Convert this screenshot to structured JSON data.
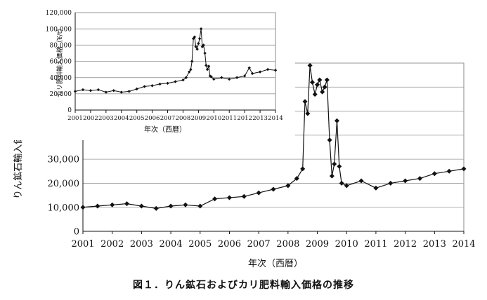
{
  "caption": "図１．りん鉱石およびカリ肥料輸入価格の推移",
  "chart_data": [
    {
      "type": "line",
      "name": "main",
      "ylabel": "りん鉱石輸入価格（¥/t）",
      "xlabel": "年次（西暦）",
      "xlim": [
        2001,
        2014
      ],
      "ylim": [
        0,
        70000
      ],
      "x_ticks": [
        2001,
        2002,
        2003,
        2004,
        2005,
        2006,
        2007,
        2008,
        2009,
        2010,
        2011,
        2012,
        2013,
        2014
      ],
      "y_ticks": [
        {
          "value": 0,
          "label": "0"
        },
        {
          "value": 10000,
          "label": "10,000"
        },
        {
          "value": 20000,
          "label": "20,000"
        },
        {
          "value": 30000,
          "label": "30,000"
        },
        {
          "value": 40000,
          "label": "40,000"
        }
      ],
      "grid": true,
      "marker": "diamond",
      "x": [
        2001.0,
        2001.5,
        2002.0,
        2002.5,
        2003.0,
        2003.5,
        2004.0,
        2004.5,
        2005.0,
        2005.5,
        2006.0,
        2006.5,
        2007.0,
        2007.5,
        2008.0,
        2008.3,
        2008.5,
        2008.58,
        2008.67,
        2008.75,
        2008.83,
        2008.92,
        2009.0,
        2009.08,
        2009.17,
        2009.25,
        2009.33,
        2009.42,
        2009.5,
        2009.58,
        2009.67,
        2009.75,
        2009.83,
        2010.0,
        2010.5,
        2011.0,
        2011.5,
        2012.0,
        2012.5,
        2013.0,
        2013.5,
        2014.0
      ],
      "y": [
        10000,
        10500,
        11000,
        11500,
        10500,
        9500,
        10500,
        11000,
        10500,
        13500,
        14000,
        14500,
        16000,
        17500,
        19000,
        22000,
        26000,
        54000,
        49000,
        69000,
        62000,
        57000,
        61000,
        63000,
        58000,
        60000,
        63000,
        38000,
        23000,
        28000,
        46000,
        27000,
        20000,
        19000,
        21000,
        18000,
        20000,
        21000,
        22000,
        24000,
        25000,
        26000
      ]
    },
    {
      "type": "line",
      "name": "inset",
      "ylabel": "カリ肥料輸入価格（¥/t）",
      "xlabel": "年次（西暦）",
      "xlim": [
        2001,
        2014
      ],
      "ylim": [
        0,
        120000
      ],
      "x_ticks": [
        2001,
        2002,
        2003,
        2004,
        2005,
        2006,
        2007,
        2008,
        2009,
        2010,
        2011,
        2012,
        2013,
        2014
      ],
      "y_ticks": [
        {
          "value": 0,
          "label": "0"
        },
        {
          "value": 20000,
          "label": "20,000"
        },
        {
          "value": 40000,
          "label": "40,000"
        },
        {
          "value": 60000,
          "label": "60,000"
        },
        {
          "value": 80000,
          "label": "80,000"
        },
        {
          "value": 100000,
          "label": "100,000"
        },
        {
          "value": 120000,
          "label": "120,000"
        }
      ],
      "grid": true,
      "marker": "diamond",
      "x": [
        2001.0,
        2001.5,
        2002.0,
        2002.5,
        2003.0,
        2003.5,
        2004.0,
        2004.5,
        2005.0,
        2005.5,
        2006.0,
        2006.5,
        2007.0,
        2007.5,
        2008.0,
        2008.2,
        2008.4,
        2008.5,
        2008.58,
        2008.67,
        2008.75,
        2008.83,
        2008.92,
        2009.0,
        2009.08,
        2009.17,
        2009.25,
        2009.33,
        2009.42,
        2009.5,
        2009.58,
        2009.67,
        2009.75,
        2009.83,
        2010.0,
        2010.5,
        2011.0,
        2011.5,
        2012.0,
        2012.3,
        2012.5,
        2013.0,
        2013.5,
        2014.0
      ],
      "y": [
        23000,
        25000,
        24000,
        25000,
        22000,
        24000,
        22000,
        23000,
        26000,
        29000,
        30000,
        32000,
        33000,
        35000,
        37000,
        40000,
        47000,
        50000,
        60000,
        88000,
        90000,
        78000,
        75000,
        82000,
        88000,
        100000,
        78000,
        80000,
        70000,
        55000,
        50000,
        54000,
        42000,
        41000,
        38000,
        40000,
        38000,
        40000,
        42000,
        52000,
        45000,
        47000,
        50000,
        49000
      ]
    }
  ]
}
